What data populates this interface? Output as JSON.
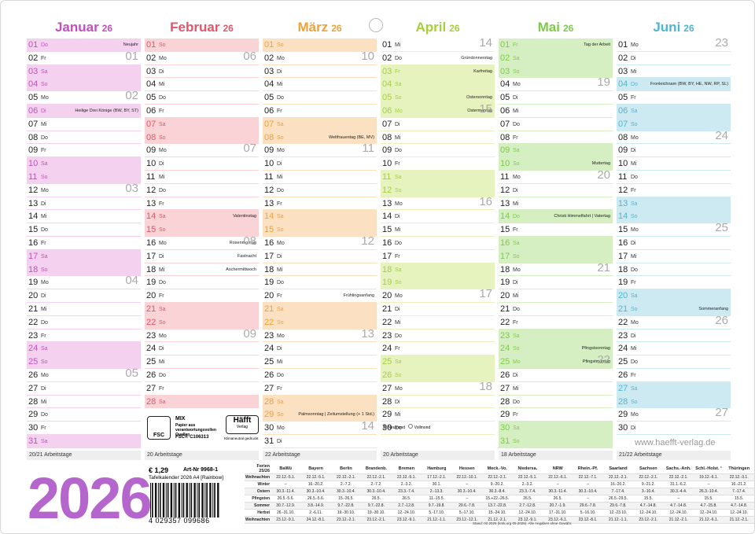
{
  "months": [
    {
      "name": "Januar",
      "year": "26",
      "color": "#c24fbd",
      "tint": "#f4d2ef",
      "footer": "20/21 Arbeitstage",
      "days": [
        {
          "d": "01",
          "w": "Do",
          "n": "Neujahr",
          "hl": true
        },
        {
          "d": "02",
          "w": "Fr",
          "k": "01"
        },
        {
          "d": "03",
          "w": "Sa",
          "hl": true
        },
        {
          "d": "04",
          "w": "So",
          "hl": true
        },
        {
          "d": "05",
          "w": "Mo",
          "k": "02"
        },
        {
          "d": "06",
          "w": "Di",
          "n": "Heilige Drei Könige (BW, BY, ST)",
          "hl": true
        },
        {
          "d": "07",
          "w": "Mi"
        },
        {
          "d": "08",
          "w": "Do"
        },
        {
          "d": "09",
          "w": "Fr"
        },
        {
          "d": "10",
          "w": "Sa",
          "hl": true
        },
        {
          "d": "11",
          "w": "So",
          "hl": true
        },
        {
          "d": "12",
          "w": "Mo",
          "k": "03"
        },
        {
          "d": "13",
          "w": "Di"
        },
        {
          "d": "14",
          "w": "Mi"
        },
        {
          "d": "15",
          "w": "Do"
        },
        {
          "d": "16",
          "w": "Fr"
        },
        {
          "d": "17",
          "w": "Sa",
          "hl": true
        },
        {
          "d": "18",
          "w": "So",
          "hl": true
        },
        {
          "d": "19",
          "w": "Mo",
          "k": "04"
        },
        {
          "d": "20",
          "w": "Di"
        },
        {
          "d": "21",
          "w": "Mi"
        },
        {
          "d": "22",
          "w": "Do"
        },
        {
          "d": "23",
          "w": "Fr"
        },
        {
          "d": "24",
          "w": "Sa",
          "hl": true
        },
        {
          "d": "25",
          "w": "So",
          "hl": true
        },
        {
          "d": "26",
          "w": "Mo",
          "k": "05"
        },
        {
          "d": "27",
          "w": "Di"
        },
        {
          "d": "28",
          "w": "Mi"
        },
        {
          "d": "29",
          "w": "Do"
        },
        {
          "d": "30",
          "w": "Fr"
        },
        {
          "d": "31",
          "w": "Sa",
          "hl": true
        }
      ]
    },
    {
      "name": "Februar",
      "year": "26",
      "color": "#e0566a",
      "tint": "#f9d3d6",
      "footer": "20 Arbeitstage",
      "days": [
        {
          "d": "01",
          "w": "So",
          "hl": true
        },
        {
          "d": "02",
          "w": "Mo",
          "k": "06"
        },
        {
          "d": "03",
          "w": "Di"
        },
        {
          "d": "04",
          "w": "Mi"
        },
        {
          "d": "05",
          "w": "Do"
        },
        {
          "d": "06",
          "w": "Fr"
        },
        {
          "d": "07",
          "w": "Sa",
          "hl": true
        },
        {
          "d": "08",
          "w": "So",
          "hl": true
        },
        {
          "d": "09",
          "w": "Mo",
          "k": "07"
        },
        {
          "d": "10",
          "w": "Di"
        },
        {
          "d": "11",
          "w": "Mi"
        },
        {
          "d": "12",
          "w": "Do"
        },
        {
          "d": "13",
          "w": "Fr"
        },
        {
          "d": "14",
          "w": "Sa",
          "n": "Valentinstag",
          "hl": true
        },
        {
          "d": "15",
          "w": "So",
          "hl": true
        },
        {
          "d": "16",
          "w": "Mo",
          "n": "Rosenmontag",
          "k": "08"
        },
        {
          "d": "17",
          "w": "Di",
          "n": "Fastnacht"
        },
        {
          "d": "18",
          "w": "Mi",
          "n": "Aschermittwoch"
        },
        {
          "d": "19",
          "w": "Do"
        },
        {
          "d": "20",
          "w": "Fr"
        },
        {
          "d": "21",
          "w": "Sa",
          "hl": true
        },
        {
          "d": "22",
          "w": "So",
          "hl": true
        },
        {
          "d": "23",
          "w": "Mo",
          "k": "09"
        },
        {
          "d": "24",
          "w": "Di"
        },
        {
          "d": "25",
          "w": "Mi"
        },
        {
          "d": "26",
          "w": "Do"
        },
        {
          "d": "27",
          "w": "Fr"
        },
        {
          "d": "28",
          "w": "Sa",
          "hl": true
        }
      ]
    },
    {
      "name": "März",
      "year": "26",
      "color": "#eea23a",
      "tint": "#fbe0c2",
      "footer": "22 Arbeitstage",
      "days": [
        {
          "d": "01",
          "w": "So",
          "hl": true
        },
        {
          "d": "02",
          "w": "Mo",
          "k": "10"
        },
        {
          "d": "03",
          "w": "Di"
        },
        {
          "d": "04",
          "w": "Mi"
        },
        {
          "d": "05",
          "w": "Do"
        },
        {
          "d": "06",
          "w": "Fr"
        },
        {
          "d": "07",
          "w": "Sa",
          "hl": true
        },
        {
          "d": "08",
          "w": "So",
          "n": "Weltfrauentag (BE, MV)",
          "hl": true
        },
        {
          "d": "09",
          "w": "Mo",
          "k": "11"
        },
        {
          "d": "10",
          "w": "Di"
        },
        {
          "d": "11",
          "w": "Mi"
        },
        {
          "d": "12",
          "w": "Do"
        },
        {
          "d": "13",
          "w": "Fr"
        },
        {
          "d": "14",
          "w": "Sa",
          "hl": true
        },
        {
          "d": "15",
          "w": "So",
          "hl": true
        },
        {
          "d": "16",
          "w": "Mo",
          "k": "12"
        },
        {
          "d": "17",
          "w": "Di"
        },
        {
          "d": "18",
          "w": "Mi"
        },
        {
          "d": "19",
          "w": "Do"
        },
        {
          "d": "20",
          "w": "Fr",
          "n": "Frühlingsanfang"
        },
        {
          "d": "21",
          "w": "Sa",
          "hl": true
        },
        {
          "d": "22",
          "w": "So",
          "hl": true
        },
        {
          "d": "23",
          "w": "Mo",
          "k": "13"
        },
        {
          "d": "24",
          "w": "Di"
        },
        {
          "d": "25",
          "w": "Mi"
        },
        {
          "d": "26",
          "w": "Do"
        },
        {
          "d": "27",
          "w": "Fr"
        },
        {
          "d": "28",
          "w": "Sa",
          "hl": true
        },
        {
          "d": "29",
          "w": "So",
          "n": "Palmsonntag | Zeitumstellung (+ 1 Std.)",
          "hl": true
        },
        {
          "d": "30",
          "w": "Mo",
          "k": "14"
        },
        {
          "d": "31",
          "w": "Di"
        }
      ]
    },
    {
      "name": "April",
      "year": "26",
      "color": "#a6cf3c",
      "tint": "#e6f3bf",
      "footer": "20 Arbeitstage",
      "days": [
        {
          "d": "01",
          "w": "Mi",
          "k": "14"
        },
        {
          "d": "02",
          "w": "Do",
          "n": "Gründonnerstag"
        },
        {
          "d": "03",
          "w": "Fr",
          "n": "Karfreitag",
          "hl": true
        },
        {
          "d": "04",
          "w": "Sa",
          "hl": true
        },
        {
          "d": "05",
          "w": "So",
          "n": "Ostersonntag",
          "hl": true
        },
        {
          "d": "06",
          "w": "Mo",
          "n": "Ostermontag",
          "k": "15",
          "hl": true
        },
        {
          "d": "07",
          "w": "Di"
        },
        {
          "d": "08",
          "w": "Mi"
        },
        {
          "d": "09",
          "w": "Do"
        },
        {
          "d": "10",
          "w": "Fr"
        },
        {
          "d": "11",
          "w": "Sa",
          "hl": true
        },
        {
          "d": "12",
          "w": "So",
          "hl": true
        },
        {
          "d": "13",
          "w": "Mo",
          "k": "16"
        },
        {
          "d": "14",
          "w": "Di"
        },
        {
          "d": "15",
          "w": "Mi"
        },
        {
          "d": "16",
          "w": "Do"
        },
        {
          "d": "17",
          "w": "Fr"
        },
        {
          "d": "18",
          "w": "Sa",
          "hl": true
        },
        {
          "d": "19",
          "w": "So",
          "hl": true
        },
        {
          "d": "20",
          "w": "Mo",
          "k": "17"
        },
        {
          "d": "21",
          "w": "Di"
        },
        {
          "d": "22",
          "w": "Mi"
        },
        {
          "d": "23",
          "w": "Do"
        },
        {
          "d": "24",
          "w": "Fr"
        },
        {
          "d": "25",
          "w": "Sa",
          "hl": true
        },
        {
          "d": "26",
          "w": "So",
          "hl": true
        },
        {
          "d": "27",
          "w": "Mo",
          "k": "18"
        },
        {
          "d": "28",
          "w": "Di"
        },
        {
          "d": "29",
          "w": "Mi"
        },
        {
          "d": "30",
          "w": "Do"
        }
      ]
    },
    {
      "name": "Mai",
      "year": "26",
      "color": "#7ccc48",
      "tint": "#d6efc2",
      "footer": "18 Arbeitstage",
      "days": [
        {
          "d": "01",
          "w": "Fr",
          "n": "Tag der Arbeit",
          "hl": true
        },
        {
          "d": "02",
          "w": "Sa",
          "hl": true
        },
        {
          "d": "03",
          "w": "So",
          "hl": true
        },
        {
          "d": "04",
          "w": "Mo",
          "k": "19"
        },
        {
          "d": "05",
          "w": "Di"
        },
        {
          "d": "06",
          "w": "Mi"
        },
        {
          "d": "07",
          "w": "Do"
        },
        {
          "d": "08",
          "w": "Fr"
        },
        {
          "d": "09",
          "w": "Sa",
          "hl": true
        },
        {
          "d": "10",
          "w": "So",
          "n": "Muttertag",
          "hl": true
        },
        {
          "d": "11",
          "w": "Mo",
          "k": "20"
        },
        {
          "d": "12",
          "w": "Di"
        },
        {
          "d": "13",
          "w": "Mi"
        },
        {
          "d": "14",
          "w": "Do",
          "n": "Christi Himmelfahrt | Vatertag",
          "hl": true
        },
        {
          "d": "15",
          "w": "Fr"
        },
        {
          "d": "16",
          "w": "Sa",
          "hl": true
        },
        {
          "d": "17",
          "w": "So",
          "hl": true
        },
        {
          "d": "18",
          "w": "Mo",
          "k": "21"
        },
        {
          "d": "19",
          "w": "Di"
        },
        {
          "d": "20",
          "w": "Mi"
        },
        {
          "d": "21",
          "w": "Do"
        },
        {
          "d": "22",
          "w": "Fr"
        },
        {
          "d": "23",
          "w": "Sa",
          "hl": true
        },
        {
          "d": "24",
          "w": "So",
          "n": "Pfingstsonntag",
          "hl": true
        },
        {
          "d": "25",
          "w": "Mo",
          "n": "Pfingstmontag",
          "k": "22",
          "hl": true
        },
        {
          "d": "26",
          "w": "Di"
        },
        {
          "d": "27",
          "w": "Mi"
        },
        {
          "d": "28",
          "w": "Do"
        },
        {
          "d": "29",
          "w": "Fr"
        },
        {
          "d": "30",
          "w": "Sa",
          "hl": true
        },
        {
          "d": "31",
          "w": "So",
          "hl": true
        }
      ]
    },
    {
      "name": "Juni",
      "year": "26",
      "color": "#4fb6cf",
      "tint": "#cdeaf2",
      "footer": "21/22 Arbeitstage",
      "days": [
        {
          "d": "01",
          "w": "Mo",
          "k": "23"
        },
        {
          "d": "02",
          "w": "Di"
        },
        {
          "d": "03",
          "w": "Mi"
        },
        {
          "d": "04",
          "w": "Do",
          "n": "Fronleichnam (BW, BY, HE, NW, RP, SL)",
          "hl": true
        },
        {
          "d": "05",
          "w": "Fr"
        },
        {
          "d": "06",
          "w": "Sa",
          "hl": true
        },
        {
          "d": "07",
          "w": "So",
          "hl": true
        },
        {
          "d": "08",
          "w": "Mo",
          "k": "24"
        },
        {
          "d": "09",
          "w": "Di"
        },
        {
          "d": "10",
          "w": "Mi"
        },
        {
          "d": "11",
          "w": "Do"
        },
        {
          "d": "12",
          "w": "Fr"
        },
        {
          "d": "13",
          "w": "Sa",
          "hl": true
        },
        {
          "d": "14",
          "w": "So",
          "hl": true
        },
        {
          "d": "15",
          "w": "Mo",
          "k": "25"
        },
        {
          "d": "16",
          "w": "Di"
        },
        {
          "d": "17",
          "w": "Mi"
        },
        {
          "d": "18",
          "w": "Do"
        },
        {
          "d": "19",
          "w": "Fr"
        },
        {
          "d": "20",
          "w": "Sa",
          "hl": true
        },
        {
          "d": "21",
          "w": "So",
          "n": "Sommeranfang",
          "hl": true
        },
        {
          "d": "22",
          "w": "Mo",
          "k": "26"
        },
        {
          "d": "23",
          "w": "Di"
        },
        {
          "d": "24",
          "w": "Mi"
        },
        {
          "d": "25",
          "w": "Do"
        },
        {
          "d": "26",
          "w": "Fr"
        },
        {
          "d": "27",
          "w": "Sa",
          "hl": true
        },
        {
          "d": "28",
          "w": "So",
          "hl": true
        },
        {
          "d": "29",
          "w": "Mo",
          "k": "27"
        },
        {
          "d": "30",
          "w": "Di"
        }
      ]
    }
  ],
  "legend": {
    "new_moon": "Neumond",
    "full_moon": "Vollmond"
  },
  "fsc": {
    "brand": "FSC",
    "mix": "MIX",
    "text": "Papier aus verantwortungsvollen Quellen",
    "code": "FSC® C106313"
  },
  "publisher": {
    "logo": "Häfft",
    "logo_sub": "Verlag",
    "climate": "Klimaneutral gedruckt",
    "url": "www.haefft-verlag.de"
  },
  "product": {
    "year": "2026",
    "price": "€ 1,29",
    "article": "Art-Nr 9968-1",
    "name": "Tafelkalender 2026 A4 [Rainbow]",
    "barcode": "4 029357 099686"
  },
  "holidays": {
    "corner": "Ferien 25/26",
    "states": [
      "BaWü",
      "Bayern",
      "Berlin",
      "Brandenb.",
      "Bremen",
      "Hamburg",
      "Hessen",
      "Meck.-Vo.",
      "Niedersa.",
      "NRW",
      "Rhein.-Pf.",
      "Saarland",
      "Sachsen",
      "Sachs.-Anh.",
      "Schl.-Holst. ¹",
      "Thüringen"
    ],
    "rows": [
      {
        "label": "Weihnachten",
        "values": [
          "22.12.-5.1.",
          "22.12.-5.1.",
          "22.12.-2.1.",
          "22.12.-2.1.",
          "22.12.-5.1.",
          "17.12.-2.1.",
          "22.12.-10.1.",
          "22.12.-2.1.",
          "22.12.-5.1.",
          "22.12.-6.1.",
          "22.12.-7.1.",
          "22.12.-2.1.",
          "22.12.-2.1.",
          "22.12.-2.1.",
          "19.12.-6.1.",
          "22.12.-3.1."
        ]
      },
      {
        "label": "Winter",
        "values": [
          "–",
          "16.-20.2.",
          "2.-7.2.",
          "2.-7.2.",
          "2.-3.2.",
          "30.1.",
          "–",
          "9.-20.2.",
          "2.-3.2.",
          "–",
          "–",
          "16.-20.2.",
          "9.-21.2.",
          "31.1.-6.2.",
          "–",
          "16.-21.2."
        ]
      },
      {
        "label": "Ostern",
        "values": [
          "30.3.-11.4.",
          "30.3.-10.4.",
          "30.3.-10.4.",
          "30.3.-10.4.",
          "23.3.-7.4.",
          "2.-13.3.",
          "30.3.-10.4.",
          "30.3.-8.4.",
          "23.3.-7.4.",
          "30.3.-11.4.",
          "30.3.-10.4.",
          "7.-17.4.",
          "3.-10.4.",
          "30.3.-4.4.",
          "26.3.-10.4.",
          "7.-17.4."
        ]
      },
      {
        "label": "Pfingsten",
        "values": [
          "26.5.-5.6.",
          "26.5.-5.6.",
          "15.-26.5.",
          "26.5.",
          "26.5.",
          "11.-15.5.",
          "–",
          "15.+22.-26.5.",
          "26.5.",
          "26.5.",
          "–",
          "26.5.-29.5.",
          "15.5.",
          "–",
          "15.5.",
          "15.5."
        ]
      },
      {
        "label": "Sommer",
        "values": [
          "30.7.-12.9.",
          "3.8.-14.9.",
          "9.7.-22.8.",
          "9.7.-22.8.",
          "2.7.-12.8.",
          "9.7.-19.8.",
          "29.6.-7.8.",
          "13.7.-22.8.",
          "2.7.-12.8.",
          "20.7.-1.9.",
          "29.6.-7.8.",
          "29.6.-7.8.",
          "4.7.-14.8.",
          "4.7.-14.8.",
          "4.7.-15.8.",
          "4.7.-14.8."
        ]
      },
      {
        "label": "Herbst",
        "values": [
          "26.-31.10.",
          "2.-6.11.",
          "19.-30.10.",
          "19.-30.10.",
          "12.-24.10.",
          "5.-17.10.",
          "5.-17.10.",
          "15.-24.10.",
          "12.-24.10.",
          "17.-31.10.",
          "5.-16.10.",
          "12.-23.10.",
          "12.-24.10.",
          "12.-24.10.",
          "12.-24.10.",
          "12.-24.10."
        ]
      },
      {
        "label": "Weihnachten",
        "values": [
          "23.12.-9.1.",
          "24.12.-8.1.",
          "23.12.-2.1.",
          "23.12.-2.1.",
          "23.12.-9.1.",
          "21.12.-1.1.",
          "23.12.-12.1.",
          "21.12.-2.1.",
          "23.12.-9.1.",
          "23.12.-6.1.",
          "23.12.-8.1.",
          "21.12.-1.1.",
          "23.12.-2.1.",
          "21.12.-2.1.",
          "21.12.-6.1.",
          "21.12.-2.1."
        ]
      }
    ],
    "note": "Stand: 02.2025 (kmk.org 05.2025). Alle Angaben ohne Gewähr."
  }
}
